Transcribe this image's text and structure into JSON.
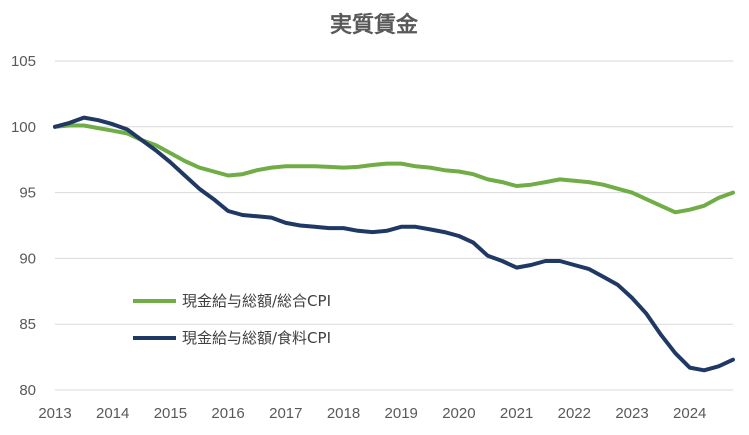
{
  "chart_data": {
    "type": "line",
    "title": "実質賃金",
    "xlabel": "",
    "ylabel": "",
    "x_ticks": [
      "2013",
      "2014",
      "2015",
      "2016",
      "2017",
      "2018",
      "2019",
      "2020",
      "2021",
      "2022",
      "2023",
      "2024"
    ],
    "y_ticks": [
      80,
      85,
      90,
      95,
      100,
      105
    ],
    "ylim": [
      80,
      105
    ],
    "xlim": [
      2013.0,
      2024.75
    ],
    "grid": "horizontal",
    "legend_position": "center-left",
    "series": [
      {
        "name": "現金給与総額/総合CPI",
        "color": "#70AD47",
        "points": [
          [
            2013.0,
            100.0
          ],
          [
            2013.25,
            100.1
          ],
          [
            2013.5,
            100.1
          ],
          [
            2013.75,
            99.9
          ],
          [
            2014.0,
            99.7
          ],
          [
            2014.25,
            99.5
          ],
          [
            2014.5,
            99.0
          ],
          [
            2014.75,
            98.6
          ],
          [
            2015.0,
            98.0
          ],
          [
            2015.25,
            97.4
          ],
          [
            2015.5,
            96.9
          ],
          [
            2015.75,
            96.6
          ],
          [
            2016.0,
            96.3
          ],
          [
            2016.25,
            96.4
          ],
          [
            2016.5,
            96.7
          ],
          [
            2016.75,
            96.9
          ],
          [
            2017.0,
            97.0
          ],
          [
            2017.25,
            97.0
          ],
          [
            2017.5,
            97.0
          ],
          [
            2017.75,
            96.95
          ],
          [
            2018.0,
            96.9
          ],
          [
            2018.25,
            96.95
          ],
          [
            2018.5,
            97.1
          ],
          [
            2018.75,
            97.2
          ],
          [
            2019.0,
            97.2
          ],
          [
            2019.25,
            97.0
          ],
          [
            2019.5,
            96.9
          ],
          [
            2019.75,
            96.7
          ],
          [
            2020.0,
            96.6
          ],
          [
            2020.25,
            96.4
          ],
          [
            2020.5,
            96.0
          ],
          [
            2020.75,
            95.8
          ],
          [
            2021.0,
            95.5
          ],
          [
            2021.25,
            95.6
          ],
          [
            2021.5,
            95.8
          ],
          [
            2021.75,
            96.0
          ],
          [
            2022.0,
            95.9
          ],
          [
            2022.25,
            95.8
          ],
          [
            2022.5,
            95.6
          ],
          [
            2022.75,
            95.3
          ],
          [
            2023.0,
            95.0
          ],
          [
            2023.25,
            94.5
          ],
          [
            2023.5,
            94.0
          ],
          [
            2023.75,
            93.5
          ],
          [
            2024.0,
            93.7
          ],
          [
            2024.25,
            94.0
          ],
          [
            2024.5,
            94.6
          ],
          [
            2024.75,
            95.0
          ]
        ]
      },
      {
        "name": "現金給与総額/食料CPI",
        "color": "#203864",
        "points": [
          [
            2013.0,
            100.0
          ],
          [
            2013.25,
            100.3
          ],
          [
            2013.5,
            100.7
          ],
          [
            2013.75,
            100.5
          ],
          [
            2014.0,
            100.2
          ],
          [
            2014.25,
            99.8
          ],
          [
            2014.5,
            99.0
          ],
          [
            2014.75,
            98.2
          ],
          [
            2015.0,
            97.3
          ],
          [
            2015.25,
            96.3
          ],
          [
            2015.5,
            95.3
          ],
          [
            2015.75,
            94.5
          ],
          [
            2016.0,
            93.6
          ],
          [
            2016.25,
            93.3
          ],
          [
            2016.5,
            93.2
          ],
          [
            2016.75,
            93.1
          ],
          [
            2017.0,
            92.7
          ],
          [
            2017.25,
            92.5
          ],
          [
            2017.5,
            92.4
          ],
          [
            2017.75,
            92.3
          ],
          [
            2018.0,
            92.3
          ],
          [
            2018.25,
            92.1
          ],
          [
            2018.5,
            92.0
          ],
          [
            2018.75,
            92.1
          ],
          [
            2019.0,
            92.4
          ],
          [
            2019.25,
            92.4
          ],
          [
            2019.5,
            92.2
          ],
          [
            2019.75,
            92.0
          ],
          [
            2020.0,
            91.7
          ],
          [
            2020.25,
            91.2
          ],
          [
            2020.5,
            90.2
          ],
          [
            2020.75,
            89.8
          ],
          [
            2021.0,
            89.3
          ],
          [
            2021.25,
            89.5
          ],
          [
            2021.5,
            89.8
          ],
          [
            2021.75,
            89.8
          ],
          [
            2022.0,
            89.5
          ],
          [
            2022.25,
            89.2
          ],
          [
            2022.5,
            88.6
          ],
          [
            2022.75,
            88.0
          ],
          [
            2023.0,
            87.0
          ],
          [
            2023.25,
            85.8
          ],
          [
            2023.5,
            84.2
          ],
          [
            2023.75,
            82.8
          ],
          [
            2024.0,
            81.7
          ],
          [
            2024.25,
            81.5
          ],
          [
            2024.5,
            81.8
          ],
          [
            2024.75,
            82.3
          ]
        ]
      }
    ]
  }
}
